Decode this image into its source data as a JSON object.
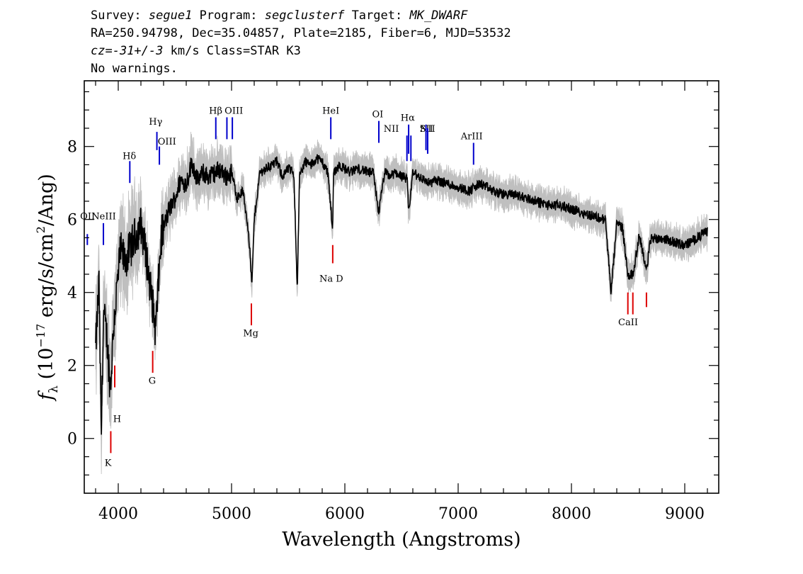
{
  "header": {
    "survey_label": "Survey:",
    "survey": "segue1",
    "program_label": "Program:",
    "program": "segclusterf",
    "target_label": "Target:",
    "target": "MK_DWARF",
    "line2": "RA=250.94798, Dec=35.04857, Plate=2185, Fiber=6, MJD=53532",
    "cz_label": "cz=",
    "cz_value": "-31+/-3",
    "cz_unit": " km/s Class=STAR K3",
    "line4": "No warnings."
  },
  "colors": {
    "flux": "#000000",
    "error": "#bfbfbf",
    "emission": "#0000cc",
    "absorption": "#dd0000"
  },
  "chart_data": {
    "type": "line",
    "xlabel": "Wavelength (Angstroms)",
    "ylabel_parts": {
      "f": "f",
      "sub": "λ",
      "a": " (10",
      "exp1": "−17",
      "b": " erg/s/cm",
      "exp2": "2",
      "c": "/Ang)"
    },
    "xlim": [
      3700,
      9300
    ],
    "ylim": [
      -1.5,
      9.8
    ],
    "xticks": [
      4000,
      5000,
      6000,
      7000,
      8000,
      9000
    ],
    "yticks": [
      0,
      2,
      4,
      6,
      8
    ],
    "series": [
      {
        "kind": "flux",
        "x": [
          3800,
          3830,
          3850,
          3870,
          3900,
          3930,
          3960,
          3990,
          4020,
          4060,
          4100,
          4150,
          4200,
          4250,
          4300,
          4330,
          4380,
          4450,
          4500,
          4550,
          4600,
          4650,
          4700,
          4750,
          4800,
          4850,
          4900,
          4950,
          5000,
          5050,
          5100,
          5150,
          5180,
          5200,
          5250,
          5300,
          5350,
          5400,
          5450,
          5500,
          5550,
          5580,
          5600,
          5650,
          5700,
          5750,
          5800,
          5850,
          5893,
          5900,
          5950,
          6000,
          6050,
          6100,
          6150,
          6200,
          6250,
          6300,
          6350,
          6400,
          6450,
          6500,
          6550,
          6563,
          6600,
          6650,
          6700,
          6750,
          6800,
          6900,
          7000,
          7100,
          7200,
          7300,
          7400,
          7500,
          7600,
          7700,
          7800,
          7900,
          8000,
          8100,
          8200,
          8300,
          8350,
          8400,
          8450,
          8498,
          8542,
          8600,
          8662,
          8700,
          8800,
          8900,
          9000,
          9100,
          9200
        ],
        "y": [
          2.5,
          4.3,
          0.1,
          3.5,
          2.8,
          1.4,
          3.2,
          4.2,
          5.2,
          4.9,
          5.2,
          5.6,
          5.9,
          5.0,
          3.8,
          3.0,
          5.6,
          6.3,
          6.6,
          7.1,
          7.0,
          7.6,
          7.1,
          7.3,
          7.2,
          7.3,
          7.4,
          7.2,
          7.3,
          6.6,
          6.8,
          5.7,
          4.2,
          6.0,
          7.3,
          7.4,
          7.5,
          7.6,
          7.2,
          7.4,
          7.3,
          4.1,
          7.2,
          7.6,
          7.5,
          7.7,
          7.6,
          7.3,
          5.7,
          7.3,
          7.5,
          7.4,
          7.3,
          7.4,
          7.4,
          7.3,
          7.3,
          6.2,
          7.3,
          7.2,
          7.3,
          7.2,
          7.1,
          6.2,
          7.3,
          7.2,
          7.1,
          7.0,
          7.1,
          7.0,
          6.9,
          6.8,
          7.0,
          6.8,
          6.7,
          6.7,
          6.6,
          6.5,
          6.4,
          6.4,
          6.3,
          6.2,
          6.1,
          6.0,
          4.0,
          5.9,
          5.8,
          4.5,
          4.5,
          5.6,
          4.6,
          5.5,
          5.5,
          5.4,
          5.3,
          5.5,
          5.7
        ]
      }
    ],
    "lines": [
      {
        "label": "OII",
        "wave": 3727,
        "kind": "emission",
        "y0": 5.3,
        "y1": 5.6,
        "lx": 3729,
        "ly": 6.0
      },
      {
        "label": "NeIII",
        "wave": 3869,
        "kind": "emission",
        "y0": 5.3,
        "y1": 5.9,
        "lx": 3872,
        "ly": 6.0
      },
      {
        "label": "Hδ",
        "wave": 4102,
        "kind": "emission",
        "y0": 7.0,
        "y1": 7.6,
        "lx": 4098,
        "ly": 7.65
      },
      {
        "label": "Hγ",
        "wave": 4341,
        "kind": "emission",
        "y0": 7.9,
        "y1": 8.4,
        "lx": 4330,
        "ly": 8.6
      },
      {
        "label": "OIII",
        "wave": 4363,
        "kind": "emission",
        "y0": 7.5,
        "y1": 8.0,
        "lx": 4430,
        "ly": 8.05
      },
      {
        "label": "Hβ",
        "wave": 4861,
        "kind": "emission",
        "y0": 8.2,
        "y1": 8.8,
        "lx": 4860,
        "ly": 8.9
      },
      {
        "label": "OIII",
        "wave": 4959,
        "kind": "emission",
        "y0": 8.2,
        "y1": 8.8,
        "lx": 5020,
        "ly": 8.9
      },
      {
        "label": "OIII",
        "wave": 5007,
        "kind": "emission",
        "y0": 8.2,
        "y1": 8.8
      },
      {
        "label": "HeI",
        "wave": 5876,
        "kind": "emission",
        "y0": 8.2,
        "y1": 8.8,
        "lx": 5876,
        "ly": 8.9
      },
      {
        "label": "OI",
        "wave": 6300,
        "kind": "emission",
        "y0": 8.1,
        "y1": 8.7,
        "lx": 6290,
        "ly": 8.8
      },
      {
        "label": "NII",
        "wave": 6548,
        "kind": "emission",
        "y0": 7.6,
        "y1": 8.3,
        "lx": 6410,
        "ly": 8.4
      },
      {
        "label": "Hα",
        "wave": 6563,
        "kind": "emission",
        "y0": 7.8,
        "y1": 8.6,
        "lx": 6555,
        "ly": 8.7
      },
      {
        "label": "NII",
        "wave": 6583,
        "kind": "emission",
        "y0": 7.6,
        "y1": 8.3,
        "lx": 6730,
        "ly": 8.4
      },
      {
        "label": "SII",
        "wave": 6716,
        "kind": "emission",
        "y0": 7.9,
        "y1": 8.6,
        "lx": 6720,
        "ly": 8.4
      },
      {
        "label": "SII",
        "wave": 6731,
        "kind": "emission",
        "y0": 7.8,
        "y1": 8.5
      },
      {
        "label": "ArIII",
        "wave": 7136,
        "kind": "emission",
        "y0": 7.5,
        "y1": 8.1,
        "lx": 7120,
        "ly": 8.2
      },
      {
        "label": "K",
        "wave": 3934,
        "kind": "absorption",
        "y0": -0.4,
        "y1": 0.2,
        "lx": 3910,
        "ly": -0.75
      },
      {
        "label": "H",
        "wave": 3969,
        "kind": "absorption",
        "y0": 1.4,
        "y1": 2.0,
        "lx": 3990,
        "ly": 0.45
      },
      {
        "label": "G",
        "wave": 4304,
        "kind": "absorption",
        "y0": 1.8,
        "y1": 2.4,
        "lx": 4300,
        "ly": 1.5
      },
      {
        "label": "Mg",
        "wave": 5175,
        "kind": "absorption",
        "y0": 3.1,
        "y1": 3.7,
        "lx": 5170,
        "ly": 2.8
      },
      {
        "label": "Na D",
        "wave": 5893,
        "kind": "absorption",
        "y0": 4.8,
        "y1": 5.3,
        "lx": 5880,
        "ly": 4.3
      },
      {
        "label": "CaII",
        "wave": 8498,
        "kind": "absorption",
        "y0": 3.4,
        "y1": 4.0,
        "lx": 8500,
        "ly": 3.1
      },
      {
        "label": "CaII",
        "wave": 8542,
        "kind": "absorption",
        "y0": 3.4,
        "y1": 4.0
      },
      {
        "label": "CaII",
        "wave": 8662,
        "kind": "absorption",
        "y0": 3.6,
        "y1": 4.0
      }
    ]
  }
}
